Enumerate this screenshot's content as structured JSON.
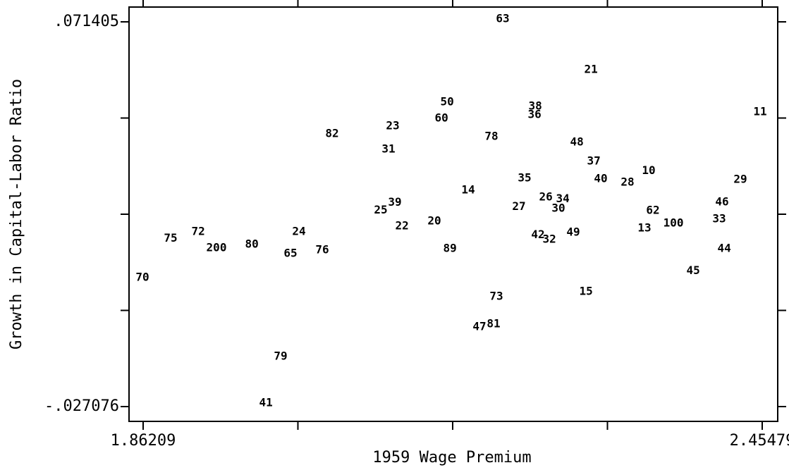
{
  "chart_data": {
    "type": "scatter",
    "x_label": "1959 Wage Premium",
    "y_label": "Growth in Capital-Labor Ratio",
    "xlim": [
      1.84859,
      2.46964
    ],
    "ylim": [
      -0.030864,
      0.075193
    ],
    "xticks": [
      1.86209,
      2.45479
    ],
    "xminor": [
      2.010265,
      2.15844,
      2.306615
    ],
    "yticks": [
      {
        "value": 0.071405,
        "label": ".071405"
      },
      0.04678475,
      0.0221645,
      -0.00245625,
      {
        "value": -0.027076,
        "label": "-.027076"
      }
    ],
    "color": "#000000",
    "series": [
      {
        "labels": [
          "63",
          "21",
          "38",
          "36",
          "11",
          "50",
          "60",
          "23",
          "82",
          "78",
          "31",
          "48",
          "37",
          "10",
          "35",
          "40",
          "28",
          "29",
          "14",
          "26",
          "34",
          "30",
          "27",
          "39",
          "25",
          "46",
          "62",
          "33",
          "100",
          "13",
          "20",
          "22",
          "42",
          "32",
          "49",
          "24",
          "72",
          "75",
          "200",
          "80",
          "65",
          "76",
          "89",
          "44",
          "45",
          "70",
          "15",
          "73",
          "47",
          "81",
          "79",
          "41"
        ],
        "x": [
          2.2064,
          2.2908,
          2.2375,
          2.2368,
          2.4528,
          2.1531,
          2.1477,
          2.1011,
          2.043,
          2.1956,
          2.097,
          2.2773,
          2.2935,
          2.3461,
          2.2273,
          2.3002,
          2.3259,
          2.4339,
          2.1733,
          2.2476,
          2.2638,
          2.2597,
          2.2219,
          2.1031,
          2.0896,
          2.4163,
          2.3502,
          2.4136,
          2.3698,
          2.3421,
          2.1409,
          2.1099,
          2.2401,
          2.251,
          2.2739,
          2.0113,
          1.9148,
          1.8884,
          1.9323,
          1.9661,
          2.0032,
          2.0336,
          2.1558,
          2.4184,
          2.3887,
          1.8614,
          2.2861,
          2.2003,
          2.1841,
          2.1976,
          1.9937,
          1.9796
        ],
        "values": [
          0.0721,
          0.0591,
          0.0498,
          0.0476,
          0.0483,
          0.0508,
          0.0467,
          0.0447,
          0.0427,
          0.042,
          0.0388,
          0.0406,
          0.0357,
          0.0333,
          0.0314,
          0.0312,
          0.0303,
          0.031,
          0.0283,
          0.0265,
          0.026,
          0.0236,
          0.0241,
          0.0251,
          0.0232,
          0.0252,
          0.0231,
          0.0209,
          0.0198,
          0.0186,
          0.0204,
          0.0191,
          0.0168,
          0.0157,
          0.0175,
          0.0177,
          0.0177,
          0.0159,
          0.0135,
          0.0144,
          0.0121,
          0.013,
          0.0133,
          0.0133,
          0.0076,
          0.0059,
          0.0023,
          0.0011,
          -0.0067,
          -0.006,
          -0.0143,
          -0.0262
        ]
      }
    ]
  }
}
